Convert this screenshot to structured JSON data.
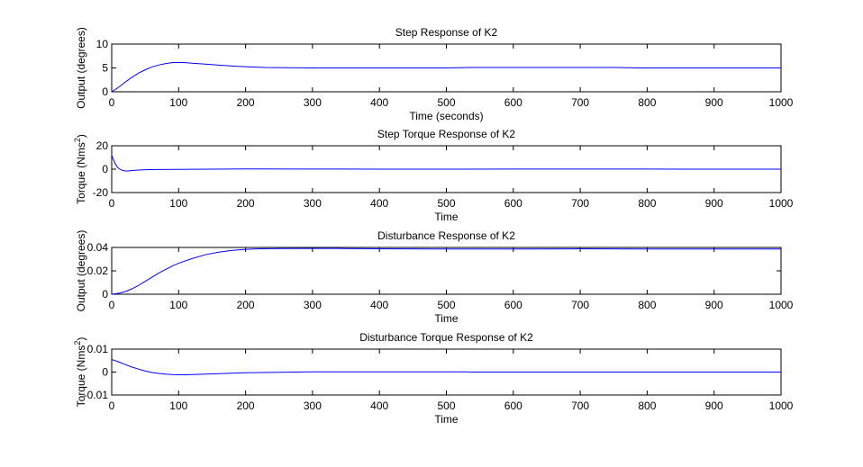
{
  "chart_data": [
    {
      "type": "line",
      "title": "Step Response of K2",
      "xlabel": "Time (seconds)",
      "ylabel": "Output (degrees)",
      "ylabel_sup": "",
      "ylabel_tail": "",
      "xlim": [
        0,
        1000
      ],
      "ylim": [
        0,
        10
      ],
      "xticks": [
        0,
        100,
        200,
        300,
        400,
        500,
        600,
        700,
        800,
        900,
        1000
      ],
      "xtick_labels": [
        "0",
        "100",
        "200",
        "300",
        "400",
        "500",
        "600",
        "700",
        "800",
        "900",
        "1000"
      ],
      "yticks": [
        0,
        5,
        10
      ],
      "ytick_labels": [
        "0",
        "5",
        "10"
      ],
      "grid": false,
      "line_color": "#0000ff",
      "series": [
        {
          "x": [
            0,
            10,
            20,
            30,
            40,
            50,
            60,
            70,
            80,
            90,
            100,
            110,
            120,
            140,
            160,
            180,
            200,
            230,
            260,
            300,
            350,
            400,
            450,
            500,
            540,
            600,
            650,
            700,
            750,
            790,
            850,
            900,
            950,
            1000
          ],
          "y": [
            0,
            0.9,
            2.0,
            3.0,
            3.9,
            4.6,
            5.2,
            5.6,
            5.9,
            6.1,
            6.15,
            6.1,
            6.0,
            5.8,
            5.6,
            5.4,
            5.25,
            5.1,
            5.05,
            5.0,
            5.0,
            5.0,
            5.0,
            5.0,
            5.1,
            5.1,
            5.1,
            5.1,
            5.1,
            5.0,
            5.0,
            5.0,
            5.0,
            5.0
          ]
        }
      ]
    },
    {
      "type": "line",
      "title": "Step Torque Response of K2",
      "xlabel": "Time",
      "ylabel": "Torque (Nms",
      "ylabel_sup": "2",
      "ylabel_tail": ")",
      "xlim": [
        0,
        1000
      ],
      "ylim": [
        -20,
        20
      ],
      "xticks": [
        0,
        100,
        200,
        300,
        400,
        500,
        600,
        700,
        800,
        900,
        1000
      ],
      "xtick_labels": [
        "0",
        "100",
        "200",
        "300",
        "400",
        "500",
        "600",
        "700",
        "800",
        "900",
        "1000"
      ],
      "yticks": [
        -20,
        0,
        20
      ],
      "ytick_labels": [
        "-20",
        "0",
        "20"
      ],
      "grid": false,
      "line_color": "#0000ff",
      "series": [
        {
          "x": [
            0,
            2,
            5,
            8,
            12,
            16,
            20,
            25,
            30,
            40,
            50,
            70,
            100,
            150,
            200,
            300,
            400,
            500,
            600,
            700,
            800,
            900,
            1000
          ],
          "y": [
            12,
            9,
            5,
            2,
            0,
            -1,
            -1.5,
            -1.5,
            -1.2,
            -0.8,
            -0.5,
            -0.3,
            -0.2,
            0,
            0.2,
            0.1,
            0,
            0,
            0.1,
            0.1,
            0.1,
            0,
            0
          ]
        }
      ]
    },
    {
      "type": "line",
      "title": "Disturbance Response of K2",
      "xlabel": "Time",
      "ylabel": "Output (degrees)",
      "ylabel_sup": "",
      "ylabel_tail": "",
      "xlim": [
        0,
        1000
      ],
      "ylim": [
        0,
        0.04
      ],
      "xticks": [
        0,
        100,
        200,
        300,
        400,
        500,
        600,
        700,
        800,
        900,
        1000
      ],
      "xtick_labels": [
        "0",
        "100",
        "200",
        "300",
        "400",
        "500",
        "600",
        "700",
        "800",
        "900",
        "1000"
      ],
      "yticks": [
        0,
        0.02,
        0.04
      ],
      "ytick_labels": [
        "0",
        "0.02",
        "0.04"
      ],
      "grid": false,
      "line_color": "#0000ff",
      "series": [
        {
          "x": [
            0,
            10,
            20,
            30,
            40,
            50,
            60,
            70,
            80,
            90,
            100,
            120,
            140,
            160,
            180,
            200,
            220,
            250,
            300,
            340,
            400,
            500,
            600,
            700,
            800,
            900,
            1000
          ],
          "y": [
            0,
            0.0008,
            0.0022,
            0.0045,
            0.0075,
            0.011,
            0.0145,
            0.018,
            0.021,
            0.024,
            0.0265,
            0.0305,
            0.0338,
            0.036,
            0.0375,
            0.0384,
            0.0388,
            0.039,
            0.0391,
            0.0391,
            0.0388,
            0.0387,
            0.0387,
            0.0388,
            0.0387,
            0.0387,
            0.0387
          ]
        }
      ]
    },
    {
      "type": "line",
      "title": "Disturbance Torque Response of K2",
      "xlabel": "Time",
      "ylabel": "Torque (Nms",
      "ylabel_sup": "2",
      "ylabel_tail": ")",
      "xlim": [
        0,
        1000
      ],
      "ylim": [
        -0.01,
        0.01
      ],
      "xticks": [
        0,
        100,
        200,
        300,
        400,
        500,
        600,
        700,
        800,
        900,
        1000
      ],
      "xtick_labels": [
        "0",
        "100",
        "200",
        "300",
        "400",
        "500",
        "600",
        "700",
        "800",
        "900",
        "1000"
      ],
      "yticks": [
        -0.01,
        0,
        0.01
      ],
      "ytick_labels": [
        "-0.01",
        "0",
        "0.01"
      ],
      "grid": false,
      "line_color": "#0000ff",
      "series": [
        {
          "x": [
            0,
            10,
            20,
            30,
            40,
            50,
            60,
            70,
            80,
            90,
            100,
            110,
            120,
            140,
            160,
            180,
            200,
            250,
            300,
            400,
            530,
            540,
            600,
            700,
            800,
            900,
            1000
          ],
          "y": [
            0.0055,
            0.0045,
            0.0033,
            0.0022,
            0.0013,
            0.0005,
            -0.0002,
            -0.0006,
            -0.0009,
            -0.0011,
            -0.0012,
            -0.0012,
            -0.0011,
            -0.0009,
            -0.0007,
            -0.0005,
            -0.0003,
            -0.0001,
            0.0001,
            0.0001,
            0.0001,
            0,
            0,
            0,
            0,
            0,
            0
          ]
        }
      ]
    }
  ]
}
